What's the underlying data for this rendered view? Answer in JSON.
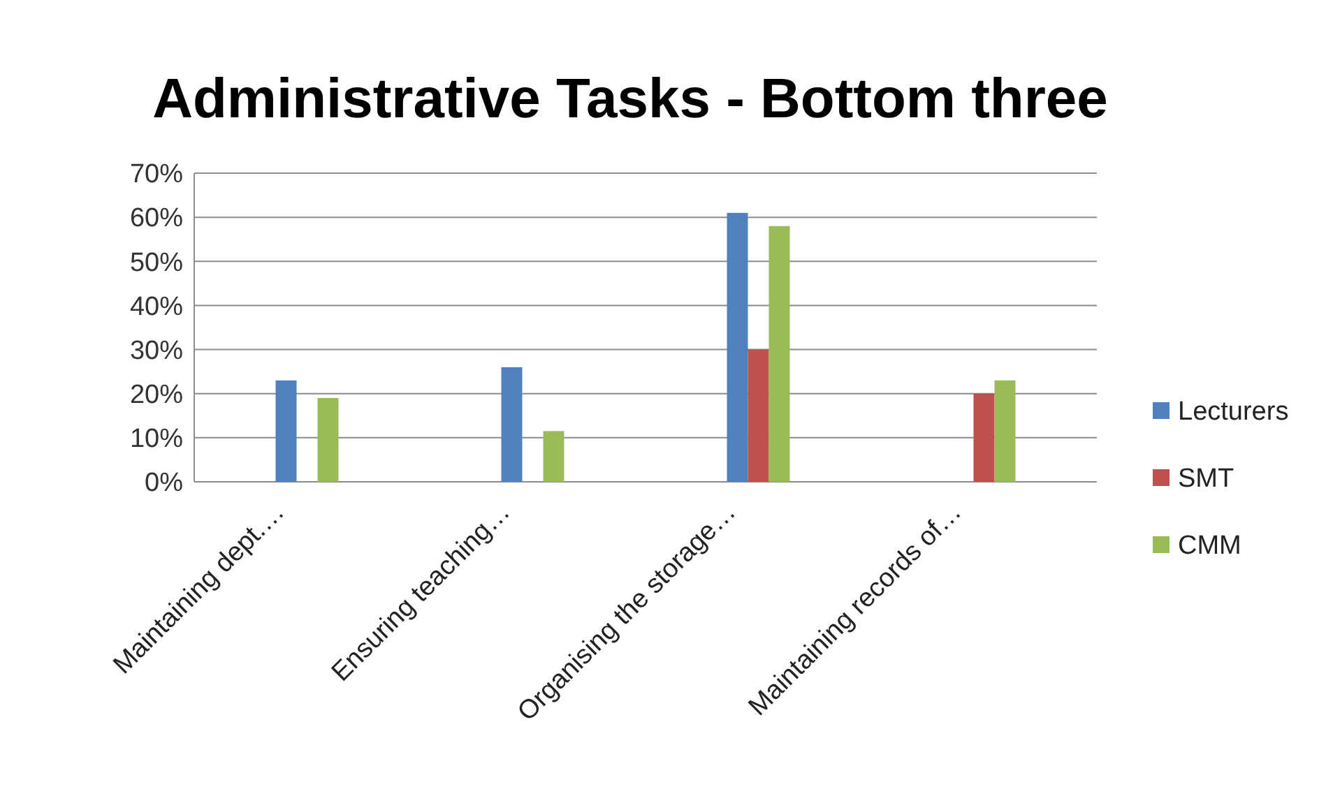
{
  "chart_data": {
    "type": "bar",
    "title": "Administrative Tasks - Bottom three",
    "categories": [
      "Maintaining  dept.…",
      "Ensuring teaching…",
      "Organising the storage…",
      "Maintaining records of…"
    ],
    "series": [
      {
        "name": "Lecturers",
        "color": "#4f81bd",
        "values": [
          23,
          26,
          61,
          null
        ]
      },
      {
        "name": "SMT",
        "color": "#c0504d",
        "values": [
          null,
          null,
          30,
          20
        ]
      },
      {
        "name": "CMM",
        "color": "#9bbb59",
        "values": [
          19,
          11.5,
          58,
          23
        ]
      }
    ],
    "ylim": [
      0,
      70
    ],
    "yticks": [
      {
        "value": 0,
        "label": "0%"
      },
      {
        "value": 10,
        "label": "10%"
      },
      {
        "value": 20,
        "label": "20%"
      },
      {
        "value": 30,
        "label": "30%"
      },
      {
        "value": 40,
        "label": "40%"
      },
      {
        "value": 50,
        "label": "50%"
      },
      {
        "value": 60,
        "label": "60%"
      },
      {
        "value": 70,
        "label": "70%"
      }
    ],
    "grid": "y",
    "legend": "right"
  }
}
